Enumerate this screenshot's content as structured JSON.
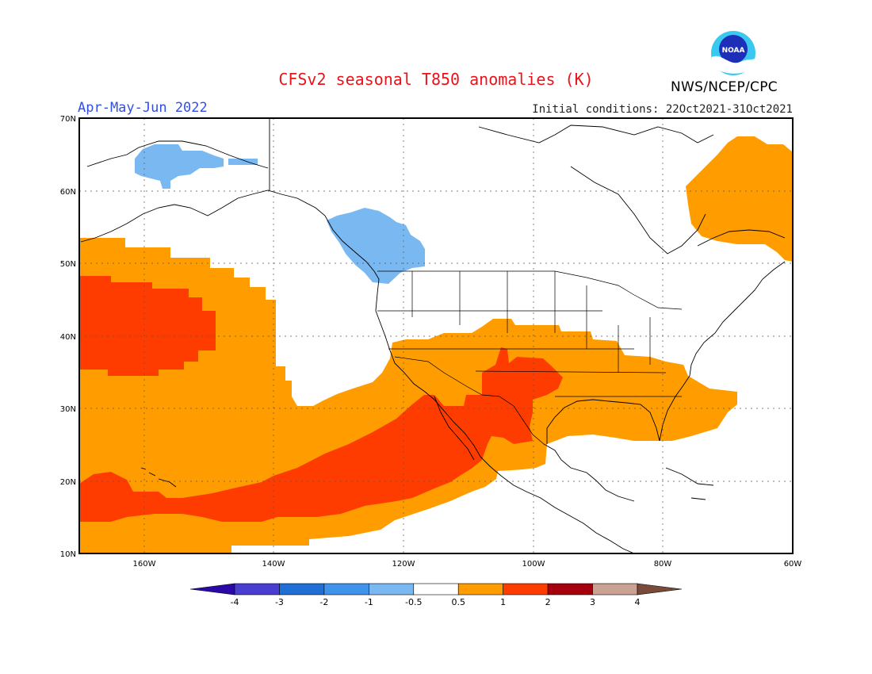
{
  "title": "CFSv2 seasonal T850 anomalies (K)",
  "period": "Apr-May-Jun 2022",
  "initial_conditions": "Initial conditions: 22Oct2021-31Oct2021",
  "agency": "NWS/NCEP/CPC",
  "logo_text": "NOAA",
  "map": {
    "lat_labels": [
      "70N",
      "60N",
      "50N",
      "40N",
      "30N",
      "20N",
      "10N"
    ],
    "lon_labels": [
      "160W",
      "140W",
      "120W",
      "100W",
      "80W",
      "60W"
    ],
    "domain": {
      "lon": [
        -170,
        -60
      ],
      "lat": [
        10,
        70
      ]
    }
  },
  "colorbar": {
    "labels": [
      "-4",
      "-3",
      "-2",
      "-1",
      "-0.5",
      "0.5",
      "1",
      "2",
      "3",
      "4"
    ],
    "colors": [
      "#2a09a8",
      "#4a3ed1",
      "#1f6fd6",
      "#3f93ea",
      "#7ab8f2",
      "#ffffff",
      "#ff9d00",
      "#ff3c00",
      "#a4000e",
      "#c9a293",
      "#7a4b3b"
    ]
  },
  "anomaly_regions": [
    {
      "name": "cold-alaska-north-slope",
      "level": "-1 to -0.5",
      "color": "#7ab8f2"
    },
    {
      "name": "cold-british-columbia",
      "level": "-1 to -0.5",
      "color": "#7ab8f2"
    },
    {
      "name": "warm-north-pacific",
      "level": "0.5 to 1",
      "color": "#ff9d00"
    },
    {
      "name": "warm-subtropical-pacific-us-south",
      "level": "0.5 to 1",
      "color": "#ff9d00"
    },
    {
      "name": "warm-labrador",
      "level": "0.5 to 1",
      "color": "#ff9d00"
    },
    {
      "name": "hot-north-pacific-core",
      "level": "1 to 2",
      "color": "#ff3c00"
    },
    {
      "name": "hot-tropical-pacific-mexico",
      "level": "1 to 2",
      "color": "#ff3c00"
    },
    {
      "name": "hot-southern-plains",
      "level": "1 to 2",
      "color": "#ff3c00"
    }
  ]
}
